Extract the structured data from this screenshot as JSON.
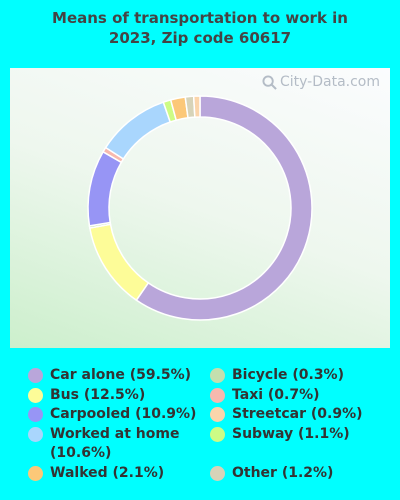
{
  "title_line1": "Means of transportation to work in",
  "title_line2": "2023, Zip code 60617",
  "watermark": "City-Data.com",
  "chart_data": {
    "type": "pie",
    "donut": true,
    "title": "Means of transportation to work in 2023, Zip code 60617",
    "legend_position": "bottom",
    "slices": [
      {
        "label": "Car alone (59.5%)",
        "value": 59.5,
        "color": "#b9a6da"
      },
      {
        "label": "Bus (12.5%)",
        "value": 12.5,
        "color": "#fdfc98"
      },
      {
        "label": "Bicycle (0.3%)",
        "value": 0.3,
        "color": "#c3dfae"
      },
      {
        "label": "Carpooled (10.9%)",
        "value": 10.9,
        "color": "#9795f5"
      },
      {
        "label": "Taxi (0.7%)",
        "value": 0.7,
        "color": "#f7b9ae"
      },
      {
        "label": "Worked at home (10.6%)",
        "value": 10.6,
        "color": "#a9d6fd"
      },
      {
        "label": "Subway (1.1%)",
        "value": 1.1,
        "color": "#cdfc85"
      },
      {
        "label": "Walked (2.1%)",
        "value": 2.1,
        "color": "#fcc878"
      },
      {
        "label": "Other (1.2%)",
        "value": 1.2,
        "color": "#d7d3b8"
      },
      {
        "label": "Streetcar (0.9%)",
        "value": 0.9,
        "color": "#fbd5ab"
      }
    ]
  },
  "legend": [
    {
      "text": "Car alone (59.5%)",
      "color": "#b9a6da",
      "col": 0,
      "row": 0
    },
    {
      "text": "Bus (12.5%)",
      "color": "#fdfc98",
      "col": 0,
      "row": 1
    },
    {
      "text": "Carpooled (10.9%)",
      "color": "#9795f5",
      "col": 0,
      "row": 2
    },
    {
      "text": "Worked at home (10.6%)",
      "color": "#a9d6fd",
      "col": 0,
      "row": 3
    },
    {
      "text": "Walked (2.1%)",
      "color": "#fcc878",
      "col": 0,
      "row": 5
    },
    {
      "text": "Bicycle (0.3%)",
      "color": "#c3dfae",
      "col": 1,
      "row": 0
    },
    {
      "text": "Taxi (0.7%)",
      "color": "#f7b9ae",
      "col": 1,
      "row": 1
    },
    {
      "text": "Streetcar (0.9%)",
      "color": "#fbd5ab",
      "col": 1,
      "row": 2
    },
    {
      "text": "Subway (1.1%)",
      "color": "#cdfc85",
      "col": 1,
      "row": 3
    },
    {
      "text": "Other (1.2%)",
      "color": "#d7d3b8",
      "col": 1,
      "row": 5
    }
  ]
}
